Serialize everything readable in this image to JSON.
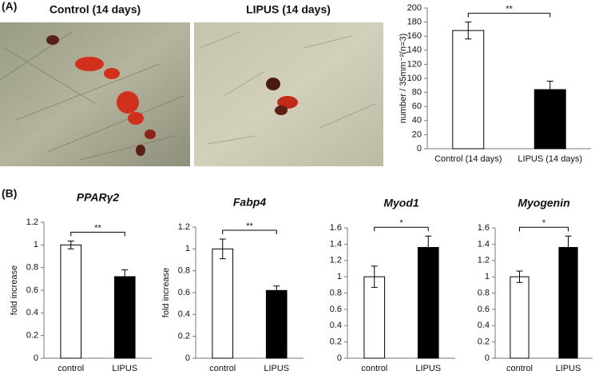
{
  "panels": {
    "a_label": "(A)",
    "b_label": "(B)",
    "images": [
      {
        "title": "Control (14 days)"
      },
      {
        "title": "LIPUS (14 days)"
      }
    ]
  },
  "chart_data": [
    {
      "type": "bar",
      "ylabel": "number / 35mm⁻²(n=3)",
      "categories": [
        "Control (14 days)",
        "LIPUS (14 days)"
      ],
      "values": [
        168,
        84
      ],
      "errors": [
        12,
        12
      ],
      "colors": [
        "#ffffff",
        "#000000"
      ],
      "ylim": [
        0,
        200
      ],
      "yticks": [
        0,
        20,
        40,
        60,
        80,
        100,
        120,
        140,
        160,
        180,
        200
      ],
      "annotation": "**"
    },
    {
      "type": "bar",
      "title": "PPARγ2",
      "ylabel": "fold increase",
      "categories": [
        "control",
        "LIPUS"
      ],
      "values": [
        1.0,
        0.72
      ],
      "errors": [
        0.035,
        0.06
      ],
      "colors": [
        "#ffffff",
        "#000000"
      ],
      "ylim": [
        0,
        1.2
      ],
      "yticks": [
        0,
        0.2,
        0.4,
        0.6,
        0.8,
        1,
        1.2
      ],
      "annotation": "**"
    },
    {
      "type": "bar",
      "title": "Fabp4",
      "ylabel": "fold increase",
      "categories": [
        "control",
        "LIPUS"
      ],
      "values": [
        1.0,
        0.62
      ],
      "errors": [
        0.09,
        0.04
      ],
      "colors": [
        "#ffffff",
        "#000000"
      ],
      "ylim": [
        0,
        1.2
      ],
      "yticks": [
        0,
        0.2,
        0.4,
        0.6,
        0.8,
        1,
        1.2
      ],
      "annotation": "**"
    },
    {
      "type": "bar",
      "title": "Myod1",
      "categories": [
        "control",
        "LIPUS"
      ],
      "values": [
        1.0,
        1.36
      ],
      "errors": [
        0.13,
        0.14
      ],
      "colors": [
        "#ffffff",
        "#000000"
      ],
      "ylim": [
        0,
        1.6
      ],
      "yticks": [
        0,
        0.2,
        0.4,
        0.6,
        0.8,
        1,
        1.2,
        1.4,
        1.6
      ],
      "annotation": "*"
    },
    {
      "type": "bar",
      "title": "Myogenin",
      "categories": [
        "control",
        "LIPUS"
      ],
      "values": [
        1.0,
        1.36
      ],
      "errors": [
        0.07,
        0.14
      ],
      "colors": [
        "#ffffff",
        "#000000"
      ],
      "ylim": [
        0,
        1.6
      ],
      "yticks": [
        0,
        0.2,
        0.4,
        0.6,
        0.8,
        1,
        1.2,
        1.4,
        1.6
      ],
      "annotation": "*"
    }
  ]
}
